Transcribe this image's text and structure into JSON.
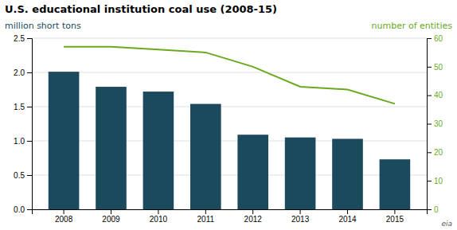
{
  "chart_data": {
    "type": "bar",
    "title": "U.S. educational institution coal use (2008-15)",
    "ylabel": "million short tons",
    "y2label": "number of entities",
    "annotations": [
      "eia"
    ],
    "categories": [
      "2008",
      "2009",
      "2010",
      "2011",
      "2012",
      "2013",
      "2014",
      "2015"
    ],
    "series": [
      {
        "type": "bar",
        "color": "#1a4a5c",
        "values": [
          2.01,
          1.79,
          1.72,
          1.54,
          1.09,
          1.05,
          1.03,
          0.73
        ]
      },
      {
        "type": "line",
        "axis": "y2",
        "color": "#6aaa1e",
        "values": [
          57,
          57,
          56,
          55,
          50,
          43,
          42,
          37
        ]
      }
    ],
    "ylim": [
      0,
      2.5
    ],
    "yticks": [
      {
        "value": 0,
        "label": "0.0"
      },
      0.5,
      {
        "value": 1,
        "label": "1.0"
      },
      1.5,
      {
        "value": 2,
        "label": "2.0"
      },
      2.5
    ],
    "y2lim": [
      0,
      60
    ],
    "y2ticks": [
      0,
      10,
      20,
      30,
      40,
      50,
      60
    ],
    "grid": true
  }
}
